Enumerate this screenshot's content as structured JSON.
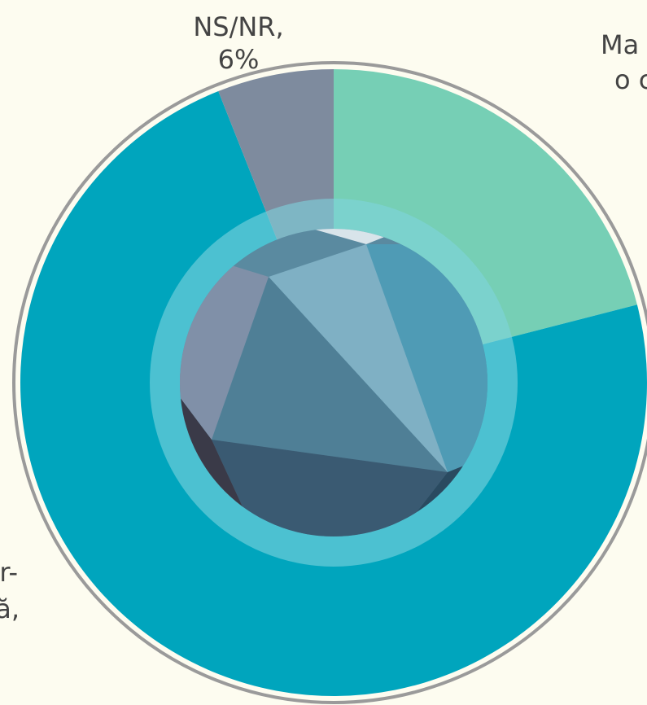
{
  "chart_data": {
    "type": "pie",
    "categories": [
      [
        "Ma",
        "o c"
      ],
      [
        "tr-",
        "tă,"
      ],
      [
        "NS/NR,"
      ]
    ],
    "values": [
      21,
      73,
      6
    ],
    "value_labels": [
      null,
      null,
      "6%"
    ],
    "colors": [
      "#76cfb5",
      "#00a5bd",
      "#7e8b9e"
    ]
  }
}
